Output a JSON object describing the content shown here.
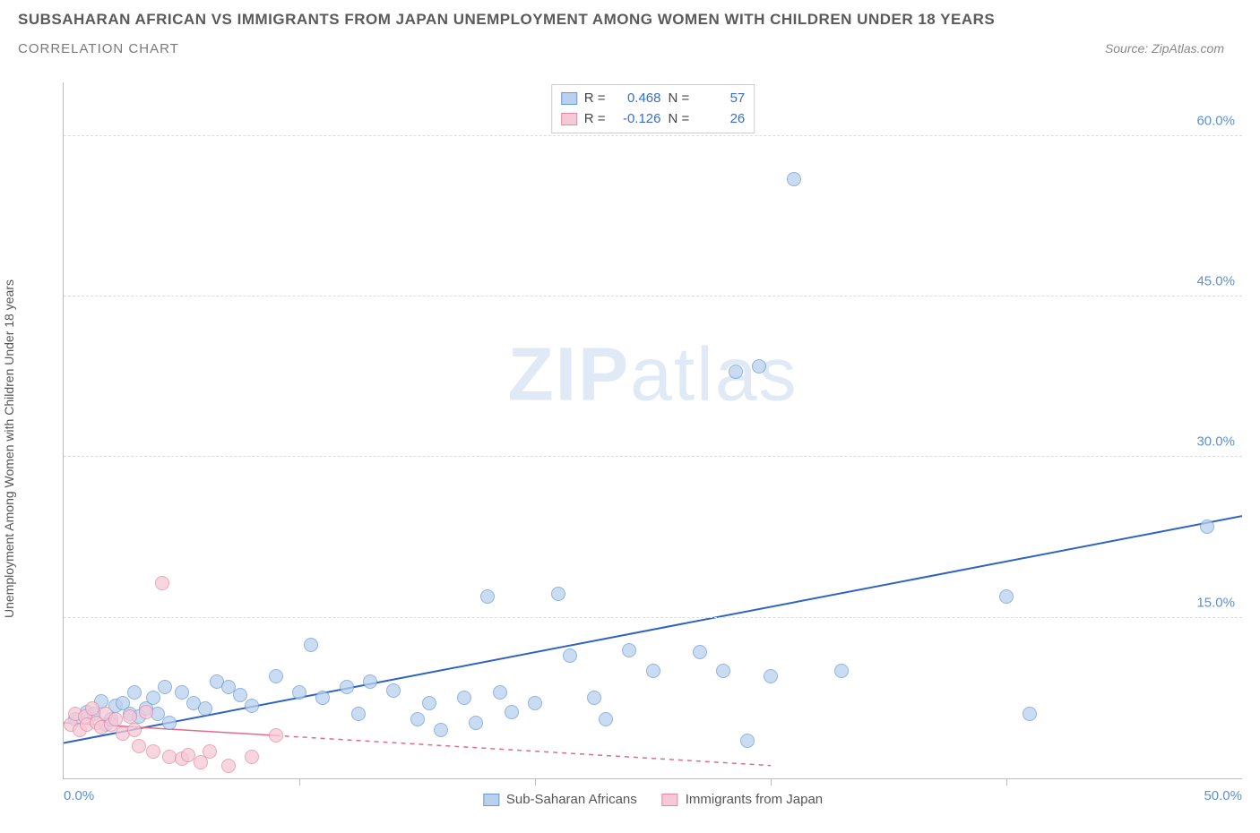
{
  "header": {
    "title": "SUBSAHARAN AFRICAN VS IMMIGRANTS FROM JAPAN UNEMPLOYMENT AMONG WOMEN WITH CHILDREN UNDER 18 YEARS",
    "subtitle": "CORRELATION CHART",
    "source_prefix": "Source: ",
    "source_name": "ZipAtlas.com"
  },
  "y_axis_label": "Unemployment Among Women with Children Under 18 years",
  "watermark": {
    "bold": "ZIP",
    "rest": "atlas"
  },
  "chart": {
    "type": "scatter",
    "xlim": [
      0,
      50
    ],
    "ylim": [
      0,
      65
    ],
    "yticks": [
      {
        "v": 15,
        "label": "15.0%"
      },
      {
        "v": 30,
        "label": "30.0%"
      },
      {
        "v": 45,
        "label": "45.0%"
      },
      {
        "v": 60,
        "label": "60.0%"
      }
    ],
    "xticks_minor": [
      10,
      20,
      30,
      40
    ],
    "xtick_left": "0.0%",
    "xtick_right": "50.0%",
    "grid_color": "#dddddd",
    "axis_color": "#bbbbbb",
    "tick_label_color": "#5b8fd6",
    "point_radius": 8,
    "series": [
      {
        "name": "Sub-Saharan Africans",
        "fill": "#b9d1ee",
        "stroke": "#6a9bd8",
        "r_label": "R =",
        "r_value": "0.468",
        "n_label": "N =",
        "n_value": "57",
        "trend": {
          "x1": 0,
          "y1": 3.3,
          "x2": 50,
          "y2": 24.5,
          "color": "#2e63c2",
          "width": 2,
          "dash": "none"
        },
        "points": [
          [
            0.5,
            5.5
          ],
          [
            1.0,
            6.2
          ],
          [
            1.3,
            6.0
          ],
          [
            1.6,
            7.2
          ],
          [
            1.8,
            5.0
          ],
          [
            2.0,
            5.5
          ],
          [
            2.2,
            6.8
          ],
          [
            2.5,
            7.0
          ],
          [
            2.8,
            6.0
          ],
          [
            3.0,
            8.0
          ],
          [
            3.2,
            5.8
          ],
          [
            3.5,
            6.5
          ],
          [
            3.8,
            7.5
          ],
          [
            4.0,
            6.0
          ],
          [
            4.3,
            8.5
          ],
          [
            4.5,
            5.2
          ],
          [
            5.0,
            8.0
          ],
          [
            5.5,
            7.0
          ],
          [
            6.0,
            6.5
          ],
          [
            6.5,
            9.0
          ],
          [
            7.0,
            8.5
          ],
          [
            7.5,
            7.8
          ],
          [
            8.0,
            6.8
          ],
          [
            9.0,
            9.5
          ],
          [
            10.0,
            8.0
          ],
          [
            10.5,
            12.5
          ],
          [
            11.0,
            7.5
          ],
          [
            12.0,
            8.5
          ],
          [
            12.5,
            6.0
          ],
          [
            13.0,
            9.0
          ],
          [
            14.0,
            8.2
          ],
          [
            15.0,
            5.5
          ],
          [
            15.5,
            7.0
          ],
          [
            16.0,
            4.5
          ],
          [
            17.0,
            7.5
          ],
          [
            17.5,
            5.2
          ],
          [
            18.0,
            17.0
          ],
          [
            18.5,
            8.0
          ],
          [
            19.0,
            6.2
          ],
          [
            20.0,
            7.0
          ],
          [
            21.0,
            17.2
          ],
          [
            21.5,
            11.5
          ],
          [
            22.5,
            7.5
          ],
          [
            23.0,
            5.5
          ],
          [
            24.0,
            12.0
          ],
          [
            25.0,
            10.0
          ],
          [
            27.0,
            11.8
          ],
          [
            28.0,
            10.0
          ],
          [
            28.5,
            38.0
          ],
          [
            29.5,
            38.5
          ],
          [
            29.0,
            3.5
          ],
          [
            30.0,
            9.5
          ],
          [
            31.0,
            56.0
          ],
          [
            33.0,
            10.0
          ],
          [
            40.0,
            17.0
          ],
          [
            41.0,
            6.0
          ],
          [
            48.5,
            23.5
          ]
        ]
      },
      {
        "name": "Immigrants from Japan",
        "fill": "#f6c9d6",
        "stroke": "#e48aa5",
        "r_label": "R =",
        "r_value": "-0.126",
        "n_label": "N =",
        "n_value": "26",
        "trend": {
          "x1": 0,
          "y1": 5.2,
          "x2": 30,
          "y2": 1.2,
          "color": "#e26a8f",
          "width": 1.5,
          "dash": "5,5",
          "solid_until": 9
        },
        "points": [
          [
            0.3,
            5.0
          ],
          [
            0.5,
            6.0
          ],
          [
            0.7,
            4.5
          ],
          [
            0.9,
            5.8
          ],
          [
            1.0,
            5.0
          ],
          [
            1.2,
            6.5
          ],
          [
            1.4,
            5.2
          ],
          [
            1.6,
            4.8
          ],
          [
            1.8,
            6.0
          ],
          [
            2.0,
            5.0
          ],
          [
            2.2,
            5.5
          ],
          [
            2.5,
            4.2
          ],
          [
            2.8,
            5.8
          ],
          [
            3.0,
            4.5
          ],
          [
            3.2,
            3.0
          ],
          [
            3.5,
            6.2
          ],
          [
            3.8,
            2.5
          ],
          [
            4.2,
            18.2
          ],
          [
            4.5,
            2.0
          ],
          [
            5.0,
            1.8
          ],
          [
            5.3,
            2.2
          ],
          [
            5.8,
            1.5
          ],
          [
            6.2,
            2.5
          ],
          [
            7.0,
            1.2
          ],
          [
            8.0,
            2.0
          ],
          [
            9.0,
            4.0
          ]
        ]
      }
    ]
  },
  "legend_bottom": [
    {
      "label": "Sub-Saharan Africans",
      "fill": "#b9d1ee",
      "stroke": "#6a9bd8"
    },
    {
      "label": "Immigrants from Japan",
      "fill": "#f6c9d6",
      "stroke": "#e48aa5"
    }
  ]
}
